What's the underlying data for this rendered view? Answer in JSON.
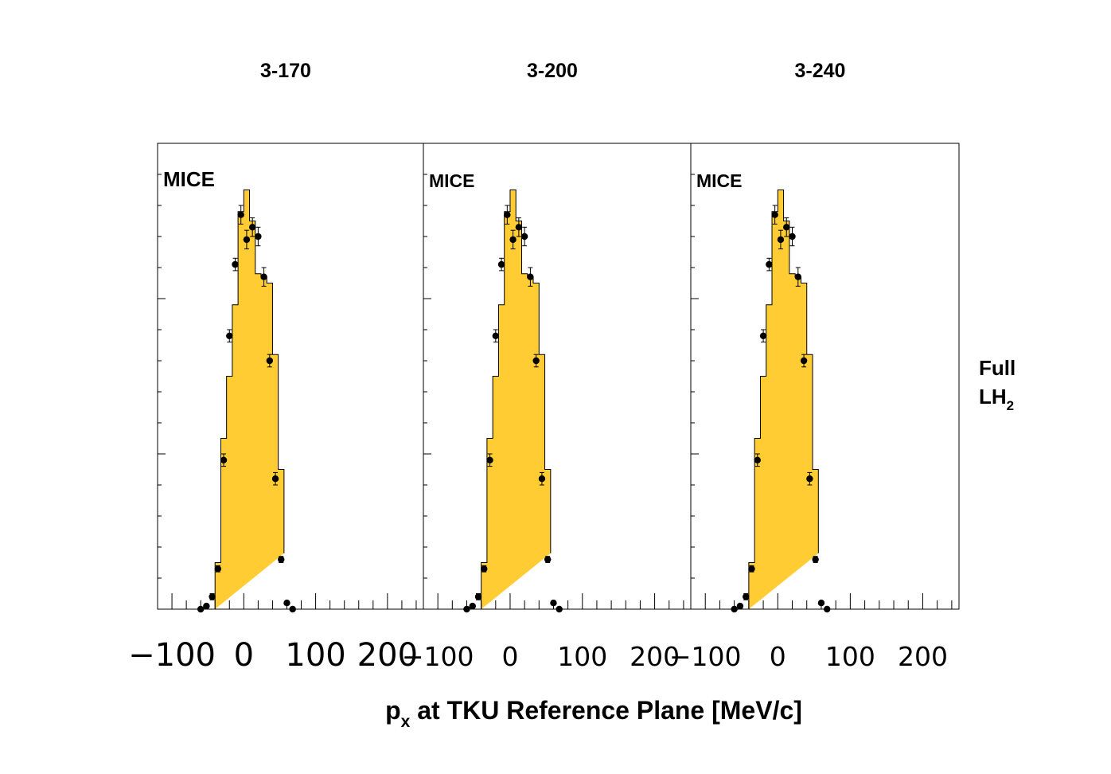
{
  "figure": {
    "xlabel_main": "p",
    "xlabel_sub": "x",
    "xlabel_rest": " at TKU Reference Plane [MeV/c]",
    "side_label_line1": "Full",
    "side_label_line2_main": "LH",
    "side_label_line2_sub": "2"
  },
  "colors": {
    "histogram_fill": "#ffcc33",
    "histogram_line": "#000000",
    "markers": "#000000"
  },
  "chart_data": [
    {
      "type": "bar",
      "title": "3-170",
      "watermark": "MICE",
      "xlim": [
        -120,
        250
      ],
      "x_ticks": [
        "−100",
        "0",
        "100",
        "200"
      ],
      "bin_edges": [
        -40,
        -32,
        -24,
        -16,
        -8,
        0,
        8,
        16,
        24,
        32,
        40,
        48,
        56
      ],
      "mc_values": [
        0.15,
        0.55,
        0.75,
        0.98,
        1.28,
        1.35,
        1.25,
        1.08,
        1.07,
        1.05,
        0.82,
        0.45,
        0.18
      ],
      "data_points": {
        "x": [
          -60,
          -52,
          -44,
          -36,
          -28,
          -20,
          -12,
          -4,
          4,
          12,
          20,
          28,
          36,
          44,
          52,
          60,
          68
        ],
        "y": [
          0.0,
          0.01,
          0.04,
          0.13,
          0.48,
          0.88,
          1.11,
          1.27,
          1.19,
          1.23,
          1.2,
          1.07,
          0.8,
          0.42,
          0.16,
          0.02,
          0.0
        ],
        "err": [
          0.0,
          0.0,
          0.01,
          0.01,
          0.02,
          0.02,
          0.02,
          0.03,
          0.03,
          0.03,
          0.03,
          0.03,
          0.02,
          0.02,
          0.01,
          0.0,
          0.0
        ]
      }
    },
    {
      "type": "bar",
      "title": "3-200",
      "watermark": "MICE",
      "xlim": [
        -120,
        250
      ],
      "x_ticks": [
        "−100",
        "0",
        "100",
        "200"
      ],
      "bin_edges": [
        -40,
        -32,
        -24,
        -16,
        -8,
        0,
        8,
        16,
        24,
        32,
        40,
        48,
        56
      ],
      "mc_values": [
        0.15,
        0.55,
        0.75,
        0.98,
        1.28,
        1.35,
        1.25,
        1.08,
        1.07,
        1.05,
        0.82,
        0.45,
        0.18
      ],
      "data_points": {
        "x": [
          -60,
          -52,
          -44,
          -36,
          -28,
          -20,
          -12,
          -4,
          4,
          12,
          20,
          28,
          36,
          44,
          52,
          60,
          68
        ],
        "y": [
          0.0,
          0.01,
          0.04,
          0.13,
          0.48,
          0.88,
          1.11,
          1.27,
          1.19,
          1.23,
          1.2,
          1.07,
          0.8,
          0.42,
          0.16,
          0.02,
          0.0
        ],
        "err": [
          0.0,
          0.0,
          0.01,
          0.01,
          0.02,
          0.02,
          0.02,
          0.03,
          0.03,
          0.03,
          0.03,
          0.03,
          0.02,
          0.02,
          0.01,
          0.0,
          0.0
        ]
      }
    },
    {
      "type": "bar",
      "title": "3-240",
      "watermark": "MICE",
      "xlim": [
        -120,
        250
      ],
      "x_ticks": [
        "−100",
        "0",
        "100",
        "200"
      ],
      "bin_edges": [
        -40,
        -32,
        -24,
        -16,
        -8,
        0,
        8,
        16,
        24,
        32,
        40,
        48,
        56
      ],
      "mc_values": [
        0.15,
        0.55,
        0.75,
        0.98,
        1.28,
        1.35,
        1.25,
        1.08,
        1.07,
        1.05,
        0.82,
        0.45,
        0.18
      ],
      "data_points": {
        "x": [
          -60,
          -52,
          -44,
          -36,
          -28,
          -20,
          -12,
          -4,
          4,
          12,
          20,
          28,
          36,
          44,
          52,
          60,
          68
        ],
        "y": [
          0.0,
          0.01,
          0.04,
          0.13,
          0.48,
          0.88,
          1.11,
          1.27,
          1.19,
          1.23,
          1.2,
          1.07,
          0.8,
          0.42,
          0.16,
          0.02,
          0.0
        ],
        "err": [
          0.0,
          0.0,
          0.01,
          0.01,
          0.02,
          0.02,
          0.02,
          0.03,
          0.03,
          0.03,
          0.03,
          0.03,
          0.02,
          0.02,
          0.01,
          0.0,
          0.0
        ]
      }
    }
  ]
}
